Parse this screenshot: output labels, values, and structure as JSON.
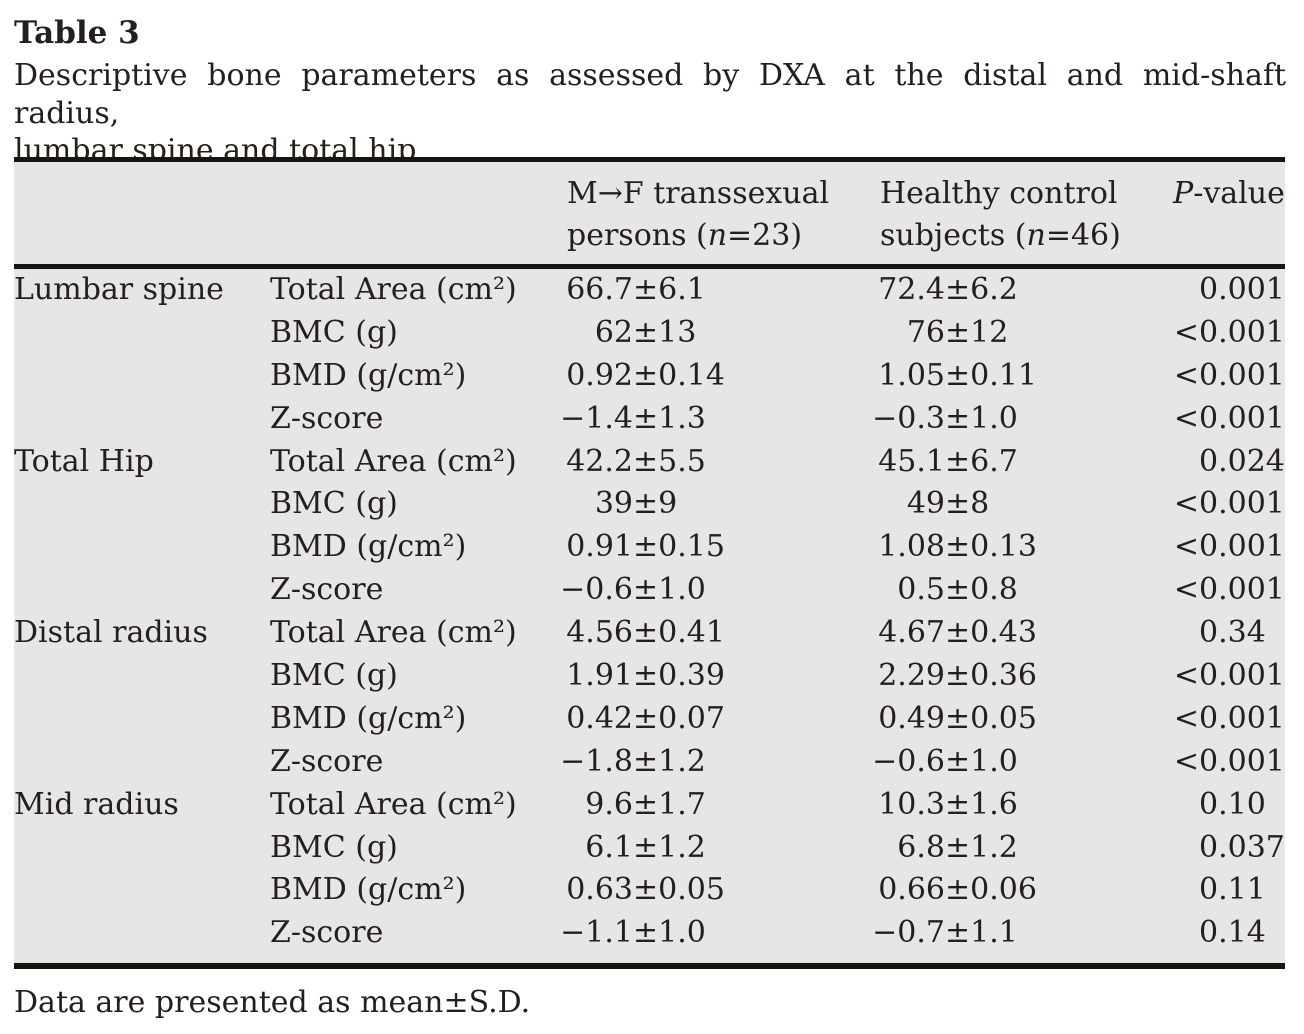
{
  "title": "Table 3",
  "caption": {
    "line1": "Descriptive bone parameters as assessed by DXA at the distal and mid-shaft radius,",
    "line2": "lumbar spine and total hip"
  },
  "columns": {
    "mf": {
      "line1": "M→F transsexual",
      "line2": [
        {
          "t": "persons ("
        },
        {
          "t": "n",
          "i": true
        },
        {
          "t": "=23)"
        }
      ]
    },
    "control": {
      "line1": "Healthy control",
      "line2": [
        {
          "t": "subjects ("
        },
        {
          "t": "n",
          "i": true
        },
        {
          "t": "=46)"
        }
      ]
    },
    "pvalue": [
      {
        "t": "P",
        "i": true
      },
      {
        "t": "-value"
      }
    ]
  },
  "groups": [
    {
      "region": "Lumbar spine",
      "rows": [
        {
          "param": "Total Area (cm²)",
          "mf": "66.7±6.1",
          "control": "72.4±6.2",
          "p": "0.001"
        },
        {
          "param": "BMC (g)",
          "mf": "62±13",
          "control": "76±12",
          "p": "<0.001"
        },
        {
          "param": "BMD (g/cm²)",
          "mf": "0.92±0.14",
          "control": "1.05±0.11",
          "p": "<0.001"
        },
        {
          "param": "Z-score",
          "mf": "−1.4±1.3",
          "control": "−0.3±1.0",
          "p": "<0.001"
        }
      ]
    },
    {
      "region": "Total Hip",
      "rows": [
        {
          "param": "Total Area (cm²)",
          "mf": "42.2±5.5",
          "control": "45.1±6.7",
          "p": "0.024"
        },
        {
          "param": "BMC (g)",
          "mf": "39±9",
          "control": "49±8",
          "p": "<0.001"
        },
        {
          "param": "BMD (g/cm²)",
          "mf": "0.91±0.15",
          "control": "1.08±0.13",
          "p": "<0.001"
        },
        {
          "param": "Z-score",
          "mf": "−0.6±1.0",
          "control": "0.5±0.8",
          "p": "<0.001"
        }
      ]
    },
    {
      "region": "Distal radius",
      "rows": [
        {
          "param": "Total Area (cm²)",
          "mf": "4.56±0.41",
          "control": "4.67±0.43",
          "p": "0.34"
        },
        {
          "param": "BMC (g)",
          "mf": "1.91±0.39",
          "control": "2.29±0.36",
          "p": "<0.001"
        },
        {
          "param": "BMD (g/cm²)",
          "mf": "0.42±0.07",
          "control": "0.49±0.05",
          "p": "<0.001"
        },
        {
          "param": "Z-score",
          "mf": "−1.8±1.2",
          "control": "−0.6±1.0",
          "p": "<0.001"
        }
      ]
    },
    {
      "region": "Mid radius",
      "rows": [
        {
          "param": "Total Area (cm²)",
          "mf": "9.6±1.7",
          "control": "10.3±1.6",
          "p": "0.10"
        },
        {
          "param": "BMC (g)",
          "mf": "6.1±1.2",
          "control": "6.8±1.2",
          "p": "0.037"
        },
        {
          "param": "BMD (g/cm²)",
          "mf": "0.63±0.05",
          "control": "0.66±0.06",
          "p": "0.11"
        },
        {
          "param": "Z-score",
          "mf": "−1.1±1.0",
          "control": "−0.7±1.1",
          "p": "0.14"
        }
      ]
    }
  ],
  "footnote": "Data are presented as mean±S.D.",
  "colors": {
    "page_bg": "#ffffff",
    "table_bg": "#e6e6e7",
    "rule": "#18140f",
    "text": "#241f1c"
  }
}
